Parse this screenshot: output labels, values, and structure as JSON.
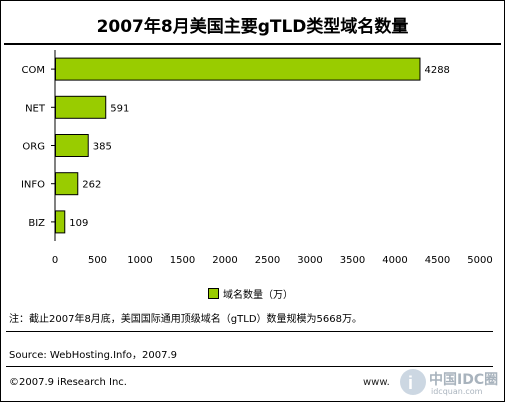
{
  "chart_data": {
    "type": "bar",
    "orientation": "horizontal",
    "title": "2007年8月美国主要gTLD类型域名数量",
    "categories": [
      "COM",
      "NET",
      "ORG",
      "INFO",
      "BIZ"
    ],
    "values": [
      4288,
      591,
      385,
      262,
      109
    ],
    "value_labels": [
      "4288",
      "591",
      "385",
      "262",
      "109"
    ],
    "series": [
      {
        "name": "域名数量（万）",
        "values": [
          4288,
          591,
          385,
          262,
          109
        ]
      }
    ],
    "xlim": [
      0,
      5000
    ],
    "xticks": [
      0,
      500,
      1000,
      1500,
      2000,
      2500,
      3000,
      3500,
      4000,
      4500,
      5000
    ],
    "xtick_labels": [
      "0",
      "500",
      "1000",
      "1500",
      "2000",
      "2500",
      "3000",
      "3500",
      "4000",
      "4500",
      "5000"
    ],
    "legend_position": "bottom",
    "grid": false,
    "bar_color": "#99cc00"
  },
  "legend_label": "域名数量（万）",
  "note": "注：截止2007年8月底，美国国际通用顶级域名（gTLD）数量规模为5668万。",
  "source": "Source: WebHosting.Info，2007.9",
  "copyright": "©2007.9 iResearch Inc.",
  "site": "www.",
  "watermark": {
    "text": "中国IDC圈",
    "sub": "idcquan.com"
  }
}
